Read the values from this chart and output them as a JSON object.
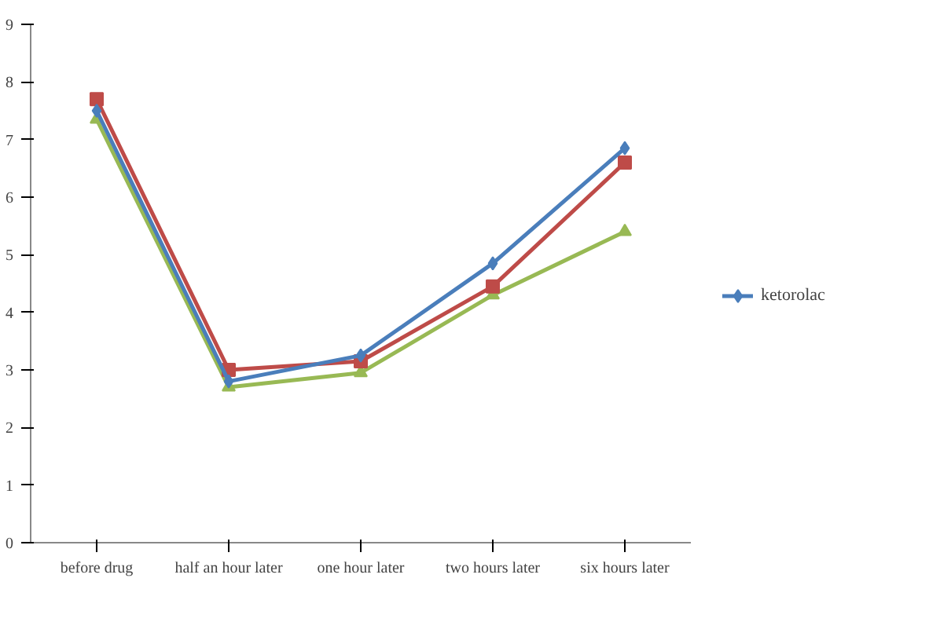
{
  "chart_data": {
    "type": "line",
    "categories": [
      "before drug",
      "half an hour later",
      "one hour later",
      "two hours later",
      "six hours later"
    ],
    "ylim": [
      0,
      9
    ],
    "yticks": [
      0,
      1,
      2,
      3,
      4,
      5,
      6,
      7,
      8,
      9
    ],
    "grid": false,
    "legend": "right",
    "series": [
      {
        "name": "ketorolac",
        "color": "#4a7ebb",
        "marker": "diamond",
        "values": [
          7.5,
          2.8,
          3.25,
          4.85,
          6.85
        ]
      },
      {
        "color": "#be4b48",
        "marker": "square",
        "values": [
          7.7,
          3.0,
          3.15,
          4.45,
          6.6
        ]
      },
      {
        "color": "#98b954",
        "marker": "triangle",
        "values": [
          7.35,
          2.7,
          2.95,
          4.3,
          5.4
        ]
      }
    ]
  }
}
